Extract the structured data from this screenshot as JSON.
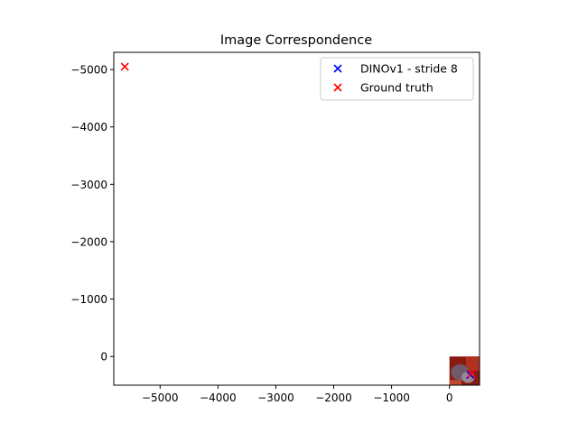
{
  "chart_data": {
    "type": "scatter",
    "title": "Image Correspondence",
    "xlabel": "",
    "ylabel": "",
    "xlim": [
      -5800,
      520
    ],
    "ylim": [
      500,
      -5300
    ],
    "y_inverted": true,
    "grid": false,
    "legend_position": "top-right",
    "xticks": [
      -5000,
      -4000,
      -3000,
      -2000,
      -1000,
      0
    ],
    "xtick_labels": [
      "−5000",
      "−4000",
      "−3000",
      "−2000",
      "−1000",
      "0"
    ],
    "yticks": [
      -5000,
      -4000,
      -3000,
      -2000,
      -1000,
      0
    ],
    "ytick_labels": [
      "−5000",
      "−4000",
      "−3000",
      "−2000",
      "−1000",
      "0"
    ],
    "image": {
      "extent_x": [
        0,
        520
      ],
      "extent_y": [
        0,
        520
      ],
      "colors": [
        "#8a1a10",
        "#b2301f",
        "#6e5a6a",
        "#9a8790",
        "#c04a30"
      ]
    },
    "series": [
      {
        "name": "DINOv1 - stride 8",
        "marker": "x",
        "color": "#0000ff",
        "points": [
          {
            "x": 360,
            "y": 320
          }
        ]
      },
      {
        "name": "Ground truth",
        "marker": "x",
        "color": "#ff0000",
        "points": [
          {
            "x": -5610,
            "y": -5050
          },
          {
            "x": 380,
            "y": 300
          }
        ]
      }
    ]
  }
}
